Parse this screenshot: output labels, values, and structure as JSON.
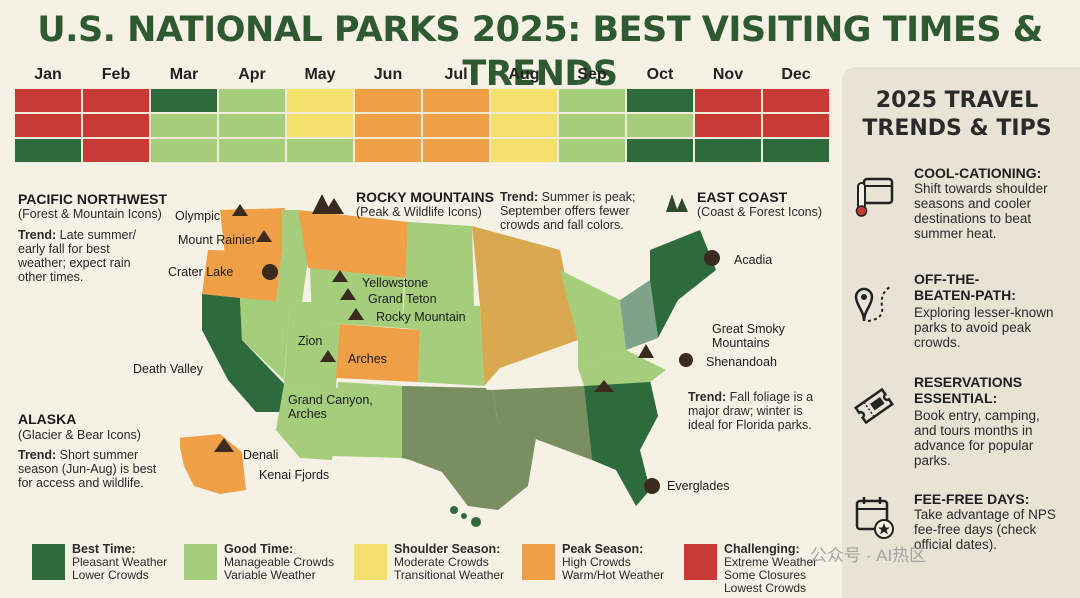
{
  "title": "U.S. NATIONAL PARKS 2025: BEST VISITING TIMES & TRENDS",
  "months": [
    "Jan",
    "Feb",
    "Mar",
    "Apr",
    "May",
    "Jun",
    "Jul",
    "Aug",
    "Sep",
    "Oct",
    "Nov",
    "Dec"
  ],
  "heatmap": {
    "rows": [
      [
        "challenging",
        "challenging",
        "best",
        "good",
        "shoulder",
        "peak",
        "peak",
        "shoulder",
        "good",
        "best",
        "challenging",
        "challenging"
      ],
      [
        "challenging",
        "challenging",
        "good",
        "good",
        "shoulder",
        "peak",
        "peak",
        "shoulder",
        "good",
        "good",
        "challenging",
        "challenging"
      ],
      [
        "best",
        "challenging",
        "good",
        "good",
        "good",
        "peak",
        "peak",
        "shoulder",
        "good",
        "best",
        "best",
        "best"
      ]
    ]
  },
  "colors": {
    "best": "#2e6b3c",
    "good": "#a4cd7c",
    "shoulder": "#f4e16b",
    "peak": "#ef9f45",
    "challenging": "#c83a35"
  },
  "regions": {
    "pnw": {
      "title": "PACIFIC NORTHWEST",
      "sub": "(Forest & Mountain Icons)",
      "trend_label": "Trend:",
      "trend_lines": [
        " Late summer/",
        "early fall for best",
        "weather; expect rain",
        "other times."
      ]
    },
    "rocky": {
      "title": "ROCKY MOUNTAINS",
      "sub": "(Peak & Wildlife Icons)",
      "trend_label": "Trend:",
      "trend_lines": [
        " Summer is peak;",
        "September offers fewer",
        "crowds and fall colors."
      ]
    },
    "east": {
      "title": "EAST COAST",
      "sub": "(Coast & Forest Icons)",
      "trend_label": "Trend:",
      "trend_lines": [
        " Fall foliage is a",
        "major draw; winter is",
        "ideal for Florida parks."
      ]
    },
    "alaska": {
      "title": "ALASKA",
      "sub": "(Glacier & Bear Icons)",
      "trend_label": "Trend:",
      "trend_lines": [
        " Short summer",
        "season (Jun-Aug) is best",
        "for access and wildlife."
      ]
    }
  },
  "parks": {
    "olympic": "Olympic",
    "rainier": "Mount Rainier",
    "crater": "Crater Lake",
    "death_valley": "Death Valley",
    "yellowstone": "Yellowstone",
    "teton": "Grand Teton",
    "rocky": "Rocky Mountain",
    "zion": "Zion",
    "arches": "Arches",
    "grand_canyon_1": "Grand Canyon,",
    "grand_canyon_2": "Arches",
    "acadia": "Acadia",
    "smoky_1": "Great Smoky",
    "smoky_2": "Mountains",
    "shenandoah": "Shenandoah",
    "everglades": "Everglades",
    "denali": "Denali",
    "kenai": "Kenai Fjords"
  },
  "sidebar": {
    "title_1": "2025 TRAVEL",
    "title_2": "TRENDS & TIPS",
    "tips": [
      {
        "head": [
          "COOL-CATIONING:"
        ],
        "body": [
          "Shift towards shoulder",
          "seasons and cooler",
          "destinations to beat",
          "summer heat."
        ],
        "icon": "calendar-thermometer-icon"
      },
      {
        "head": [
          "OFF-THE-",
          "BEATEN-PATH:"
        ],
        "body": [
          "Exploring lesser-known",
          "parks to avoid peak",
          "crowds."
        ],
        "icon": "map-pin-path-icon"
      },
      {
        "head": [
          "RESERVATIONS",
          "ESSENTIAL:"
        ],
        "body": [
          "Book entry, camping,",
          "and tours months in",
          "advance for popular",
          "parks."
        ],
        "icon": "ticket-icon"
      },
      {
        "head": [
          "FEE-FREE DAYS:"
        ],
        "body": [
          "Take advantage of NPS",
          "fee-free days (check",
          "official dates)."
        ],
        "icon": "calendar-star-icon"
      }
    ]
  },
  "legend": [
    {
      "key": "best",
      "title": "Best Time:",
      "lines": [
        "Pleasant Weather",
        "Lower Crowds"
      ]
    },
    {
      "key": "good",
      "title": "Good Time:",
      "lines": [
        "Manageable Crowds",
        "Variable Weather"
      ]
    },
    {
      "key": "shoulder",
      "title": "Shoulder Season:",
      "lines": [
        "Moderate Crowds",
        "Transitional Weather"
      ]
    },
    {
      "key": "peak",
      "title": "Peak Season:",
      "lines": [
        "High Crowds",
        "Warm/Hot Weather"
      ]
    },
    {
      "key": "challenging",
      "title": "Challenging:",
      "lines": [
        "Extreme Weather",
        "Some Closures",
        "Lowest Crowds"
      ]
    }
  ],
  "watermark": "公众号 · AI热区"
}
